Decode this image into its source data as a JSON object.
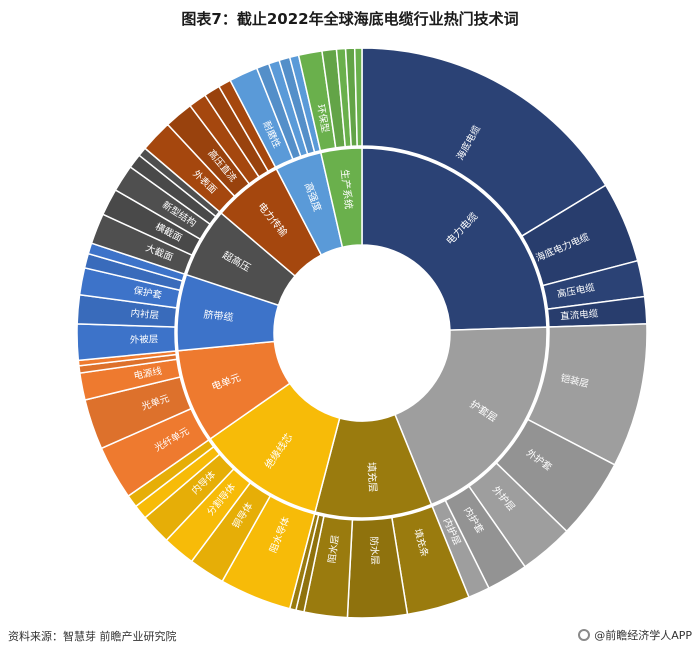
{
  "title": "图表7：截止2022年全球海底电缆行业热门技术词",
  "source": "资料来源：智慧芽 前瞻产业研究院",
  "brand": "@前瞻经济学人APP",
  "chart_data": {
    "type": "sunburst",
    "title": "图表7：截止2022年全球海底电缆行业热门技术词",
    "inner": [
      {
        "label": "电力电缆",
        "value": 24.0,
        "color": "#2b4275"
      },
      {
        "label": "护套层",
        "value": 19.0,
        "color": "#9e9e9e"
      },
      {
        "label": "填充层",
        "value": 10.0,
        "color": "#9a7b0e"
      },
      {
        "label": "绝缘线芯",
        "value": 11.0,
        "color": "#f7bb08"
      },
      {
        "label": "电单元",
        "value": 8.0,
        "color": "#ee7a2f"
      },
      {
        "label": "脐带缆",
        "value": 6.5,
        "color": "#3d73c9"
      },
      {
        "label": "超高压",
        "value": 6.0,
        "color": "#4f4f4f"
      },
      {
        "label": "电力传输",
        "value": 6.0,
        "color": "#a5470e"
      },
      {
        "label": "高强度",
        "value": 4.0,
        "color": "#5a9ad8"
      },
      {
        "label": "生产系统",
        "value": 3.5,
        "color": "#6ab04c"
      }
    ],
    "outer": [
      {
        "label": "海底电缆",
        "value": 16.0,
        "parent": "电力电缆"
      },
      {
        "label": "海底电力电缆",
        "value": 4.5,
        "parent": "电力电缆"
      },
      {
        "label": "高压电缆",
        "value": 2.0,
        "parent": "电力电缆"
      },
      {
        "label": "直流电缆",
        "value": 1.5,
        "parent": "电力电缆"
      },
      {
        "label": "铠装层",
        "value": 8.0,
        "parent": "护套层"
      },
      {
        "label": "外护套",
        "value": 4.5,
        "parent": "护套层"
      },
      {
        "label": "外护层",
        "value": 3.0,
        "parent": "护套层"
      },
      {
        "label": "内护套",
        "value": 2.3,
        "parent": "护套层"
      },
      {
        "label": "内护层",
        "value": 1.2,
        "parent": "护套层"
      },
      {
        "label": "填充条",
        "value": 3.5,
        "parent": "填充层"
      },
      {
        "label": "防水层",
        "value": 3.3,
        "parent": "填充层"
      },
      {
        "label": "阻水层",
        "value": 2.4,
        "parent": "填充层"
      },
      {
        "label": "",
        "value": 0.45,
        "parent": "填充层"
      },
      {
        "label": "",
        "value": 0.35,
        "parent": "填充层"
      },
      {
        "label": "阻水导体",
        "value": 4.0,
        "parent": "绝缘线芯"
      },
      {
        "label": "铜导体",
        "value": 2.0,
        "parent": "绝缘线芯"
      },
      {
        "label": "分割导体",
        "value": 1.8,
        "parent": "绝缘线芯"
      },
      {
        "label": "内导体",
        "value": 1.7,
        "parent": "绝缘线芯"
      },
      {
        "label": "",
        "value": 0.8,
        "parent": "绝缘线芯"
      },
      {
        "label": "",
        "value": 0.7,
        "parent": "绝缘线芯"
      },
      {
        "label": "光纤单元",
        "value": 3.0,
        "parent": "电单元"
      },
      {
        "label": "光单元",
        "value": 2.8,
        "parent": "电单元"
      },
      {
        "label": "电源线",
        "value": 1.5,
        "parent": "电单元"
      },
      {
        "label": "",
        "value": 0.4,
        "parent": "电单元"
      },
      {
        "label": "",
        "value": 0.3,
        "parent": "电单元"
      },
      {
        "label": "外被层",
        "value": 2.0,
        "parent": "脐带缆"
      },
      {
        "label": "内衬层",
        "value": 1.6,
        "parent": "脐带缆"
      },
      {
        "label": "保护套",
        "value": 1.5,
        "parent": "脐带缆"
      },
      {
        "label": "",
        "value": 0.8,
        "parent": "脐带缆"
      },
      {
        "label": "",
        "value": 0.6,
        "parent": "脐带缆"
      },
      {
        "label": "大截面",
        "value": 1.7,
        "parent": "超高压"
      },
      {
        "label": "横截面",
        "value": 1.5,
        "parent": "超高压"
      },
      {
        "label": "新型结构",
        "value": 1.5,
        "parent": "超高压"
      },
      {
        "label": "",
        "value": 0.8,
        "parent": "超高压"
      },
      {
        "label": "",
        "value": 0.5,
        "parent": "超高压"
      },
      {
        "label": "外表面",
        "value": 1.8,
        "parent": "电力传输"
      },
      {
        "label": "高压直流",
        "value": 1.6,
        "parent": "电力传输"
      },
      {
        "label": "",
        "value": 1.0,
        "parent": "电力传输"
      },
      {
        "label": "",
        "value": 0.9,
        "parent": "电力传输"
      },
      {
        "label": "",
        "value": 0.7,
        "parent": "电力传输"
      },
      {
        "label": "耐磨性",
        "value": 1.6,
        "parent": "高强度"
      },
      {
        "label": "",
        "value": 0.7,
        "parent": "高强度"
      },
      {
        "label": "",
        "value": 0.6,
        "parent": "高强度"
      },
      {
        "label": "",
        "value": 0.6,
        "parent": "高强度"
      },
      {
        "label": "",
        "value": 0.5,
        "parent": "高强度"
      },
      {
        "label": "环保型",
        "value": 1.3,
        "parent": "生产系统"
      },
      {
        "label": "",
        "value": 0.8,
        "parent": "生产系统"
      },
      {
        "label": "",
        "value": 0.5,
        "parent": "生产系统"
      },
      {
        "label": "",
        "value": 0.5,
        "parent": "生产系统"
      },
      {
        "label": "",
        "value": 0.4,
        "parent": "生产系统"
      }
    ]
  }
}
